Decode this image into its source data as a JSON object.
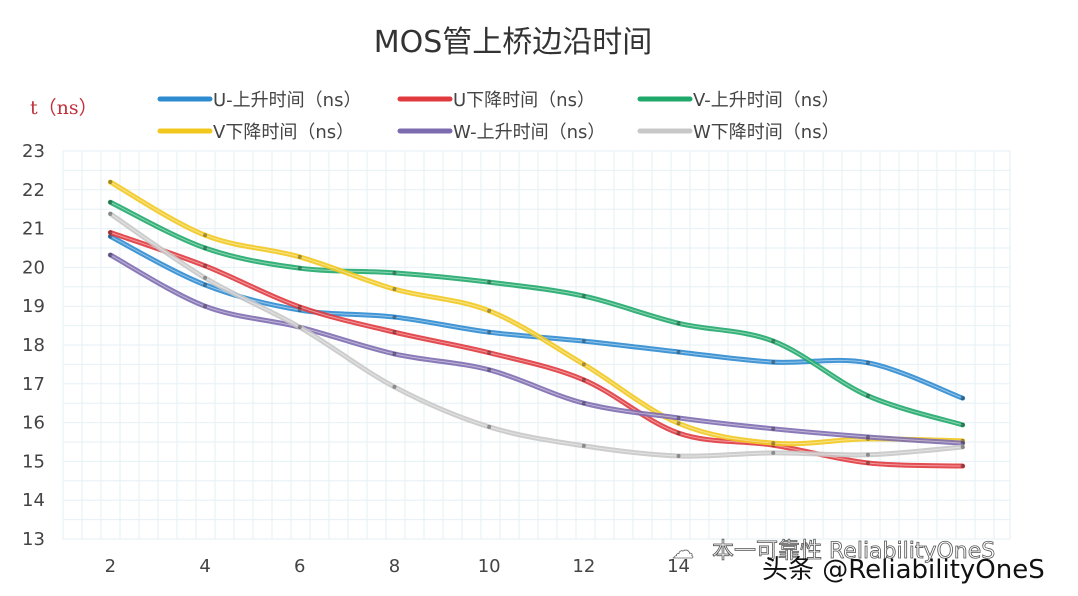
{
  "chart_data": {
    "type": "line",
    "title": "MOS管上桥边沿时间",
    "ylabel": "t（ns）",
    "xlabel": "",
    "x": [
      2,
      4,
      6,
      8,
      10,
      12,
      14,
      16,
      18,
      20
    ],
    "x_tick_labels": [
      "2",
      "4",
      "6",
      "8",
      "10",
      "12",
      "14"
    ],
    "y_tick_labels": [
      "13",
      "14",
      "15",
      "16",
      "17",
      "18",
      "19",
      "20",
      "21",
      "22",
      "23"
    ],
    "xlim": [
      1,
      21
    ],
    "ylim": [
      13,
      23
    ],
    "grid": true,
    "smooth": true,
    "legend_position": "top",
    "series": [
      {
        "name": "U-上升时间（ns）",
        "color": "#2e8bd0",
        "values": [
          20.8,
          19.55,
          18.9,
          18.72,
          18.33,
          18.1,
          17.82,
          17.56,
          17.54,
          16.63
        ]
      },
      {
        "name": "U下降时间（ns）",
        "color": "#e0393e",
        "values": [
          20.9,
          20.04,
          18.98,
          18.33,
          17.8,
          17.1,
          15.73,
          15.42,
          14.96,
          14.88
        ]
      },
      {
        "name": "V-上升时间（ns）",
        "color": "#1fa86a",
        "values": [
          21.68,
          20.5,
          19.98,
          19.86,
          19.62,
          19.26,
          18.56,
          18.1,
          16.69,
          15.94
        ]
      },
      {
        "name": "V下降时间（ns）",
        "color": "#f2c81e",
        "values": [
          22.2,
          20.83,
          20.27,
          19.44,
          18.88,
          17.5,
          15.98,
          15.47,
          15.58,
          15.53
        ]
      },
      {
        "name": "W-上升时间（ns）",
        "color": "#7d6bb0",
        "values": [
          20.32,
          19.0,
          18.46,
          17.77,
          17.36,
          16.5,
          16.12,
          15.84,
          15.63,
          15.47
        ]
      },
      {
        "name": "W下降时间（ns）",
        "color": "#c8c8c8",
        "values": [
          21.38,
          19.73,
          18.46,
          16.92,
          15.89,
          15.4,
          15.14,
          15.22,
          15.17,
          15.37
        ]
      }
    ]
  },
  "watermark": {
    "line1": "本一可靠性 ReliabilityOneS",
    "line2": "头条 @ReliabilityOneS"
  }
}
